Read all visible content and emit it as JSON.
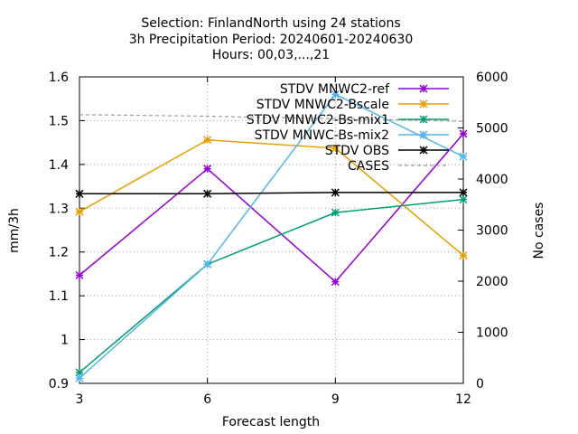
{
  "chart_data": {
    "type": "line",
    "title": [
      "Selection: FinlandNorth using    24 stations",
      "3h Precipitation   Period: 20240601-20240630",
      "Hours: 00,03,...,21"
    ],
    "xlabel": "Forecast length",
    "ylabel": "mm/3h",
    "y2label": "No cases",
    "x": [
      3,
      6,
      9,
      12
    ],
    "xticks": [
      "3",
      "6",
      "9",
      "12"
    ],
    "xlim": [
      3,
      12
    ],
    "ylim": [
      0.9,
      1.6
    ],
    "yticks": [
      "0.9",
      "1",
      "1.1",
      "1.2",
      "1.3",
      "1.4",
      "1.5",
      "1.6"
    ],
    "y2lim": [
      0,
      6000
    ],
    "y2ticks": [
      "0",
      "1000",
      "2000",
      "3000",
      "4000",
      "5000",
      "6000"
    ],
    "grid": true,
    "legend_position": "top-right",
    "series": [
      {
        "name": "STDV MNWC2-ref",
        "color": "#9400d3",
        "axis": "y",
        "marker": "x",
        "values": [
          1.147,
          1.39,
          1.132,
          1.47
        ]
      },
      {
        "name": "STDV MNWC2-Bscale",
        "color": "#e69f00",
        "axis": "y",
        "marker": "x",
        "values": [
          1.292,
          1.456,
          1.437,
          1.192
        ]
      },
      {
        "name": "STDV MNWC2-Bs-mix1",
        "color": "#009e73",
        "axis": "y",
        "marker": "x",
        "values": [
          0.925,
          1.172,
          1.29,
          1.32
        ]
      },
      {
        "name": "STDV MNWC-Bs-mix2",
        "color": "#56b4e9",
        "axis": "y",
        "marker": "x",
        "values": [
          0.912,
          1.172,
          1.56,
          1.418
        ]
      },
      {
        "name": "STDV OBS",
        "color": "#000000",
        "axis": "y",
        "marker": "x",
        "values": [
          1.333,
          1.333,
          1.336,
          1.336
        ]
      },
      {
        "name": "CASES",
        "color": "#a0a0a0",
        "axis": "y2",
        "marker": "none",
        "dashed": true,
        "values": [
          5260,
          5230,
          5180,
          5130
        ]
      }
    ]
  }
}
